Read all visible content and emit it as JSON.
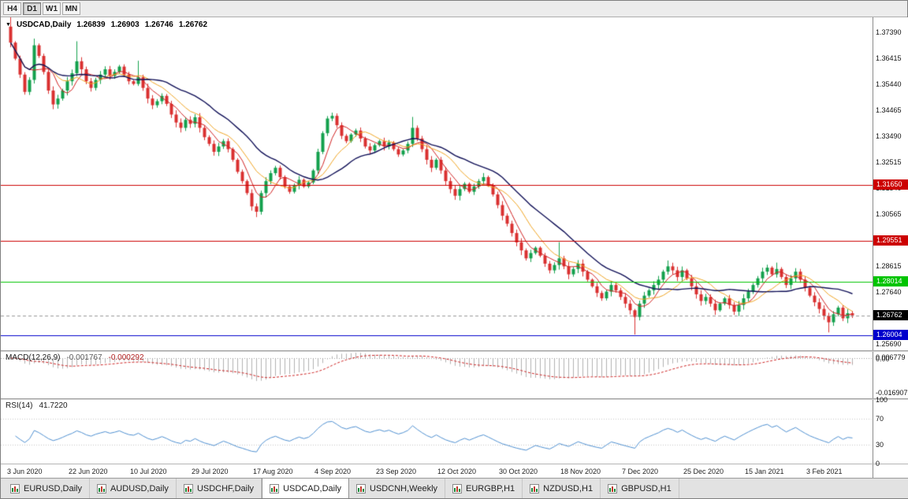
{
  "toolbar": {
    "timeframes": [
      {
        "label": "H4",
        "active": false
      },
      {
        "label": "D1",
        "active": true
      },
      {
        "label": "W1",
        "active": false
      },
      {
        "label": "MN",
        "active": false
      }
    ]
  },
  "chart": {
    "title": {
      "menu_glyph": "▼",
      "symbol": "USDCAD,Daily",
      "open": "1.26839",
      "high": "1.26903",
      "low": "1.26746",
      "close": "1.26762"
    }
  },
  "macd": {
    "label": "MACD(12,26,9)",
    "main_value": "-0.001767",
    "signal_value": "-0.000292",
    "axis_labels": [
      "0.006779",
      "0.00",
      "-0.016907"
    ]
  },
  "rsi": {
    "label": "RSI(14)",
    "value": "41.7220",
    "axis_labels": [
      "100",
      "70",
      "30",
      "0"
    ],
    "levels": [
      70,
      30
    ]
  },
  "tabs": [
    {
      "label": "EURUSD,Daily",
      "active": false
    },
    {
      "label": "AUDUSD,Daily",
      "active": false
    },
    {
      "label": "USDCHF,Daily",
      "active": false
    },
    {
      "label": "USDCAD,Daily",
      "active": true
    },
    {
      "label": "USDCNH,Weekly",
      "active": false
    },
    {
      "label": "EURGBP,H1",
      "active": false
    },
    {
      "label": "NZDUSD,H1",
      "active": false
    },
    {
      "label": "GBPUSD,H1",
      "active": false
    }
  ],
  "colors": {
    "bull": "#13a04d",
    "bear": "#da3030",
    "ma_fast": "#d02020",
    "ma_mid": "#efa320",
    "ma_slow": "#101057",
    "hline_red": "#cc0000",
    "hline_green": "#00c400",
    "hline_blue": "#0000cc",
    "current_box": "#000000",
    "macd_hist": "#b0b0b0",
    "macd_signal": "#cc2222",
    "rsi_line": "#4e8fd0"
  },
  "chart_data": {
    "type": "candlestick",
    "symbol": "USDCAD",
    "timeframe": "Daily",
    "price_axis": {
      "max": 1.3795,
      "min": 1.2545,
      "tick_top_price": 1.3739,
      "tick_step": 0.00975,
      "tick_labels": [
        "1.37390",
        "1.36415",
        "1.35440",
        "1.34465",
        "1.33490",
        "1.32515",
        "1.31540",
        "1.30565",
        "1.29590",
        "1.28615",
        "1.27640",
        "1.26665",
        "1.25690"
      ]
    },
    "x_labels": [
      "3 Jun 2020",
      "22 Jun 2020",
      "10 Jul 2020",
      "29 Jul 2020",
      "17 Aug 2020",
      "4 Sep 2020",
      "23 Sep 2020",
      "12 Oct 2020",
      "30 Oct 2020",
      "18 Nov 2020",
      "7 Dec 2020",
      "25 Dec 2020",
      "15 Jan 2021",
      "3 Feb 2021"
    ],
    "x_label_stride": 13,
    "first_open": 1.376,
    "closes": [
      1.37,
      1.364,
      1.358,
      1.3515,
      1.356,
      1.369,
      1.365,
      1.359,
      1.352,
      1.3468,
      1.349,
      1.352,
      1.3555,
      1.3585,
      1.363,
      1.36,
      1.3555,
      1.353,
      1.356,
      1.358,
      1.36,
      1.3575,
      1.359,
      1.361,
      1.358,
      1.3555,
      1.3545,
      1.357,
      1.353,
      1.349,
      1.3465,
      1.348,
      1.35,
      1.347,
      1.343,
      1.34,
      1.338,
      1.341,
      1.3395,
      1.342,
      1.338,
      1.3345,
      1.332,
      1.329,
      1.331,
      1.333,
      1.33,
      1.326,
      1.3215,
      1.318,
      1.3135,
      1.3085,
      1.3065,
      1.3135,
      1.318,
      1.321,
      1.323,
      1.3195,
      1.316,
      1.314,
      1.3165,
      1.3185,
      1.316,
      1.3175,
      1.322,
      1.329,
      1.336,
      1.3415,
      1.3425,
      1.339,
      1.335,
      1.333,
      1.3355,
      1.337,
      1.334,
      1.331,
      1.3295,
      1.3315,
      1.333,
      1.331,
      1.3325,
      1.33,
      1.328,
      1.3295,
      1.332,
      1.338,
      1.334,
      1.33,
      1.326,
      1.323,
      1.326,
      1.322,
      1.318,
      1.315,
      1.3125,
      1.315,
      1.317,
      1.314,
      1.316,
      1.318,
      1.3195,
      1.3165,
      1.313,
      1.309,
      1.305,
      1.302,
      1.2985,
      1.295,
      1.292,
      1.289,
      1.291,
      1.293,
      1.29,
      1.287,
      1.2845,
      1.2865,
      1.289,
      1.286,
      1.283,
      1.285,
      1.287,
      1.284,
      1.281,
      1.2785,
      1.276,
      1.274,
      1.2765,
      1.279,
      1.277,
      1.2745,
      1.272,
      1.2695,
      1.267,
      1.272,
      1.275,
      1.277,
      1.279,
      1.281,
      1.284,
      1.286,
      1.2845,
      1.282,
      1.2845,
      1.2815,
      1.2785,
      1.2755,
      1.273,
      1.2745,
      1.272,
      1.2695,
      1.272,
      1.274,
      1.2715,
      1.269,
      1.2715,
      1.274,
      1.2765,
      1.279,
      1.2815,
      1.284,
      1.2855,
      1.283,
      1.285,
      1.282,
      1.279,
      1.2815,
      1.284,
      1.281,
      1.278,
      1.275,
      1.2725,
      1.27,
      1.2675,
      1.265,
      1.268,
      1.2705,
      1.2665,
      1.2684,
      1.26762
    ],
    "wick_overrides": {
      "0": {
        "h": 1.3795
      },
      "5": {
        "h": 1.3715
      },
      "14": {
        "h": 1.3705
      },
      "27": {
        "h": 1.3632
      },
      "52": {
        "l": 1.3045
      },
      "68": {
        "h": 1.3437
      },
      "85": {
        "h": 1.3421
      },
      "116": {
        "h": 1.2951
      },
      "132": {
        "l": 1.2604
      },
      "139": {
        "h": 1.2882
      },
      "162": {
        "h": 1.2874
      },
      "173": {
        "l": 1.2612
      },
      "178": {
        "h": 1.26903,
        "l": 1.26746
      }
    },
    "hlines": [
      {
        "price": 1.3165,
        "label": "1.31650",
        "color_key": "hline_red"
      },
      {
        "price": 1.29551,
        "label": "1.29551",
        "color_key": "hline_red"
      },
      {
        "price": 1.28014,
        "label": "1.28014",
        "color_key": "hline_green"
      },
      {
        "price": 1.26004,
        "label": "1.26004",
        "color_key": "hline_blue"
      }
    ],
    "current_price": {
      "value": 1.26762,
      "label": "1.26762"
    },
    "moving_averages": [
      {
        "period": 5,
        "color_key": "ma_fast"
      },
      {
        "period": 10,
        "color_key": "ma_mid"
      },
      {
        "period": 20,
        "color_key": "ma_slow"
      }
    ],
    "macd_params": {
      "fast": 12,
      "slow": 26,
      "signal": 9
    },
    "rsi_params": {
      "period": 14
    }
  }
}
